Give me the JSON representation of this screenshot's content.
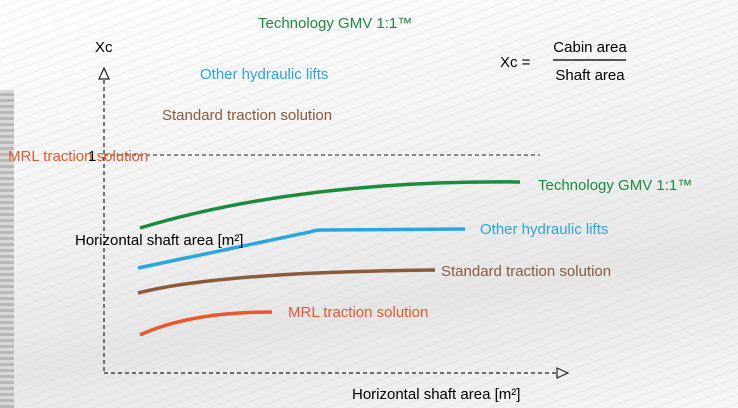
{
  "title": "Technology GMV 1:1™",
  "formula": {
    "lhs": "Xc =",
    "numerator": "Cabin area",
    "denominator": "Shaft area"
  },
  "y_axis": {
    "label": "Xc",
    "tick": "1"
  },
  "x_axis": {
    "label": "Horizontal shaft area [m²]"
  },
  "inner_label": "Horizontal shaft area [m²]",
  "legend": [
    "Other hydraulic lifts",
    "Standard traction solution",
    "MRL traction solution"
  ],
  "curves": [
    {
      "label": "Technology GMV 1:1™"
    },
    {
      "label": "Other hydraulic lifts"
    },
    {
      "label": "Standard traction solution"
    },
    {
      "label": "MRL traction solution"
    }
  ]
}
